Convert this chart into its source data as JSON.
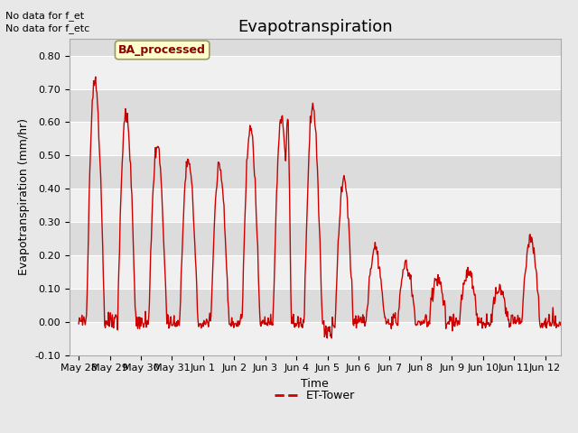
{
  "title": "Evapotranspiration",
  "xlabel": "Time",
  "ylabel": "Evapotranspiration (mm/hr)",
  "ylim": [
    -0.1,
    0.85
  ],
  "yticks": [
    -0.1,
    0.0,
    0.1,
    0.2,
    0.3,
    0.4,
    0.5,
    0.6,
    0.7,
    0.8
  ],
  "ytick_labels": [
    "-0.10",
    "0.00",
    "0.10",
    "0.20",
    "0.30",
    "0.40",
    "0.50",
    "0.60",
    "0.70",
    "0.80"
  ],
  "line_color": "#cc0000",
  "line_width": 1.0,
  "fig_bg_color": "#e8e8e8",
  "plot_bg_color": "#dcdcdc",
  "band_colors": [
    "#f0f0f0",
    "#dcdcdc"
  ],
  "grid_color": "#ffffff",
  "legend_label": "ET-Tower",
  "annotation_lines": [
    "No data for f_et",
    "No data for f_etc"
  ],
  "ba_box_label": "BA_processed",
  "ba_box_facecolor": "#ffffcc",
  "ba_box_edgecolor": "#999966",
  "ba_box_textcolor": "#8b0000",
  "x_tick_labels": [
    "May 28",
    "May 29",
    "May 30",
    "May 31",
    "Jun 1",
    "Jun 2",
    "Jun 3",
    "Jun 4",
    "Jun 5",
    "Jun 6",
    "Jun 7",
    "Jun 8",
    "Jun 9",
    "Jun 10",
    "Jun 11",
    "Jun 12"
  ],
  "daily_peaks": [
    0.73,
    0.63,
    0.53,
    0.49,
    0.47,
    0.58,
    0.61,
    0.65,
    0.43,
    0.22,
    0.17,
    0.13,
    0.15,
    0.1,
    0.25,
    0.01
  ],
  "title_fontsize": 13,
  "axis_label_fontsize": 9,
  "tick_fontsize": 8,
  "annot_fontsize": 8,
  "legend_fontsize": 9
}
